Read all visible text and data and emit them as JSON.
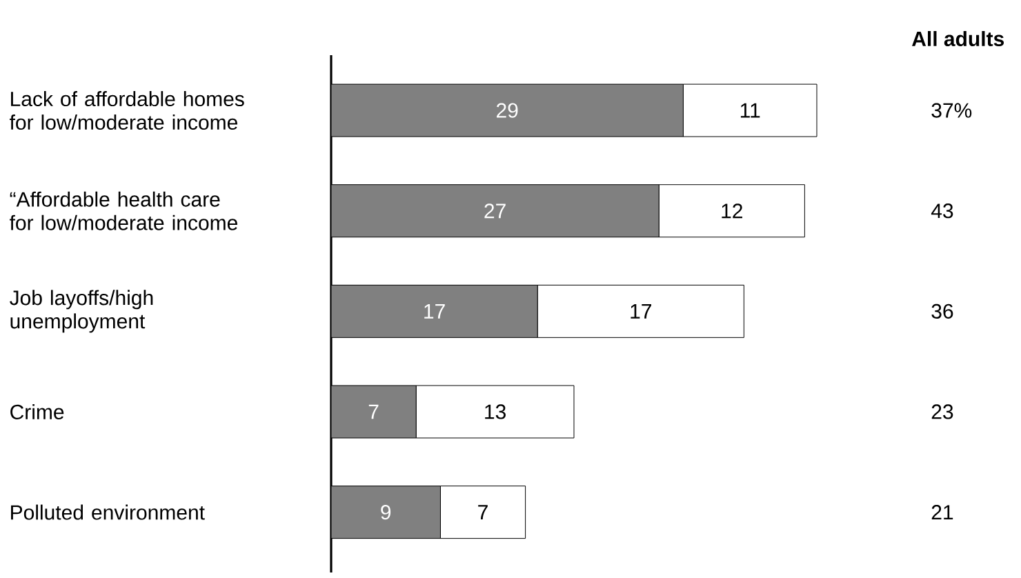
{
  "chart_data": {
    "type": "bar",
    "orientation": "horizontal",
    "stacked": true,
    "data_labels": true,
    "categories": [
      "Lack of affordable homes for low/moderate income",
      "“Affordable health care for low/moderate income",
      "Job layoffs/high unemployment",
      "Crime",
      "Polluted environment"
    ],
    "series": [
      {
        "color": "#808080",
        "values": [
          29,
          27,
          17,
          7,
          9
        ]
      },
      {
        "color": "#ffffff",
        "values": [
          11,
          12,
          17,
          13,
          7
        ]
      }
    ],
    "annotations": [
      "All adults",
      "37%",
      "43",
      "36",
      "23",
      "21"
    ]
  }
}
